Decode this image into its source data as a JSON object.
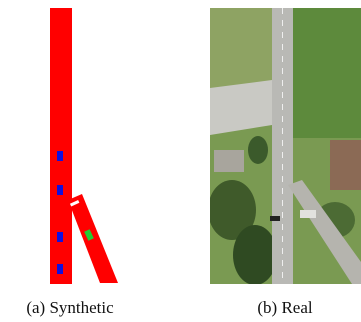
{
  "figure": {
    "panels": [
      {
        "caption": "(a) Synthetic"
      },
      {
        "caption": "(b) Real"
      }
    ]
  }
}
